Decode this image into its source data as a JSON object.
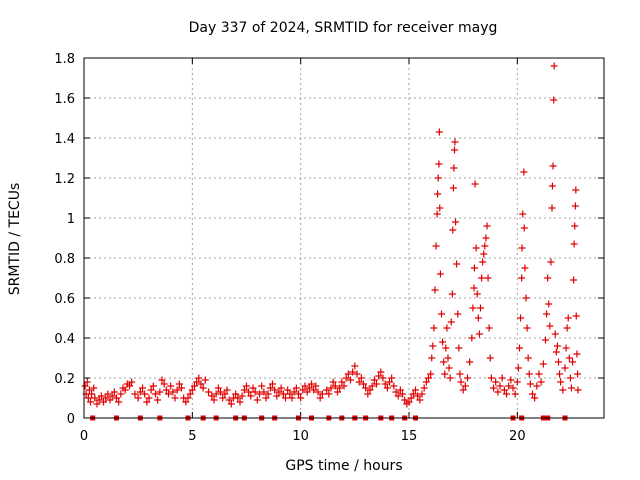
{
  "chart_data": {
    "type": "scatter",
    "title": "Day 337 of 2024, SRMTID for receiver mayg",
    "xlabel": "GPS time / hours",
    "ylabel": "SRMTID / TECUs",
    "xlim": [
      0,
      24
    ],
    "ylim": [
      0,
      1.8
    ],
    "xticks": [
      0,
      5,
      10,
      15,
      20
    ],
    "xtick_labels": [
      "0",
      "5",
      "10",
      "15",
      "20"
    ],
    "yticks": [
      0,
      0.2,
      0.4,
      0.6,
      0.8,
      1.0,
      1.2,
      1.4,
      1.6,
      1.8
    ],
    "ytick_labels": [
      "0",
      "0.2",
      "0.4",
      "0.6",
      "0.8",
      "1",
      "1.2",
      "1.4",
      "1.6",
      "1.8"
    ],
    "grid": true,
    "marker": "plus",
    "series_color": "#e00000",
    "series": [
      {
        "name": "SRMTID",
        "points": [
          [
            0.05,
            0.16
          ],
          [
            0.1,
            0.12
          ],
          [
            0.15,
            0.18
          ],
          [
            0.2,
            0.1
          ],
          [
            0.25,
            0.14
          ],
          [
            0.3,
            0.08
          ],
          [
            0.35,
            0.12
          ],
          [
            0.45,
            0.15
          ],
          [
            0.5,
            0.1
          ],
          [
            0.6,
            0.07
          ],
          [
            0.7,
            0.09
          ],
          [
            0.8,
            0.11
          ],
          [
            0.9,
            0.08
          ],
          [
            1.0,
            0.1
          ],
          [
            1.1,
            0.12
          ],
          [
            1.2,
            0.09
          ],
          [
            1.3,
            0.11
          ],
          [
            1.4,
            0.13
          ],
          [
            1.5,
            0.1
          ],
          [
            1.6,
            0.08
          ],
          [
            1.7,
            0.12
          ],
          [
            1.8,
            0.15
          ],
          [
            1.9,
            0.14
          ],
          [
            2.0,
            0.17
          ],
          [
            2.1,
            0.16
          ],
          [
            2.2,
            0.18
          ],
          [
            2.35,
            0.12
          ],
          [
            2.5,
            0.1
          ],
          [
            2.6,
            0.13
          ],
          [
            2.7,
            0.15
          ],
          [
            2.8,
            0.12
          ],
          [
            2.9,
            0.08
          ],
          [
            3.0,
            0.1
          ],
          [
            3.1,
            0.14
          ],
          [
            3.2,
            0.16
          ],
          [
            3.3,
            0.12
          ],
          [
            3.4,
            0.09
          ],
          [
            3.5,
            0.13
          ],
          [
            3.6,
            0.19
          ],
          [
            3.7,
            0.17
          ],
          [
            3.8,
            0.14
          ],
          [
            3.9,
            0.12
          ],
          [
            4.0,
            0.16
          ],
          [
            4.1,
            0.13
          ],
          [
            4.2,
            0.1
          ],
          [
            4.3,
            0.14
          ],
          [
            4.4,
            0.17
          ],
          [
            4.5,
            0.15
          ],
          [
            4.6,
            0.1
          ],
          [
            4.7,
            0.08
          ],
          [
            4.8,
            0.1
          ],
          [
            4.9,
            0.12
          ],
          [
            5.0,
            0.14
          ],
          [
            5.1,
            0.16
          ],
          [
            5.2,
            0.18
          ],
          [
            5.3,
            0.2
          ],
          [
            5.4,
            0.17
          ],
          [
            5.5,
            0.15
          ],
          [
            5.6,
            0.19
          ],
          [
            5.75,
            0.13
          ],
          [
            5.9,
            0.11
          ],
          [
            6.0,
            0.09
          ],
          [
            6.1,
            0.12
          ],
          [
            6.2,
            0.15
          ],
          [
            6.3,
            0.13
          ],
          [
            6.4,
            0.1
          ],
          [
            6.5,
            0.12
          ],
          [
            6.6,
            0.14
          ],
          [
            6.7,
            0.09
          ],
          [
            6.8,
            0.07
          ],
          [
            6.9,
            0.1
          ],
          [
            7.0,
            0.12
          ],
          [
            7.1,
            0.1
          ],
          [
            7.2,
            0.08
          ],
          [
            7.3,
            0.11
          ],
          [
            7.4,
            0.14
          ],
          [
            7.5,
            0.16
          ],
          [
            7.6,
            0.13
          ],
          [
            7.7,
            0.11
          ],
          [
            7.8,
            0.15
          ],
          [
            7.9,
            0.13
          ],
          [
            8.0,
            0.09
          ],
          [
            8.1,
            0.12
          ],
          [
            8.2,
            0.16
          ],
          [
            8.3,
            0.13
          ],
          [
            8.4,
            0.1
          ],
          [
            8.5,
            0.12
          ],
          [
            8.6,
            0.15
          ],
          [
            8.7,
            0.17
          ],
          [
            8.8,
            0.14
          ],
          [
            8.9,
            0.11
          ],
          [
            9.0,
            0.13
          ],
          [
            9.1,
            0.15
          ],
          [
            9.2,
            0.12
          ],
          [
            9.3,
            0.1
          ],
          [
            9.4,
            0.14
          ],
          [
            9.5,
            0.12
          ],
          [
            9.6,
            0.1
          ],
          [
            9.7,
            0.13
          ],
          [
            9.8,
            0.15
          ],
          [
            9.9,
            0.12
          ],
          [
            10.0,
            0.1
          ],
          [
            10.1,
            0.14
          ],
          [
            10.2,
            0.16
          ],
          [
            10.3,
            0.13
          ],
          [
            10.4,
            0.15
          ],
          [
            10.5,
            0.17
          ],
          [
            10.6,
            0.14
          ],
          [
            10.7,
            0.16
          ],
          [
            10.8,
            0.13
          ],
          [
            10.9,
            0.1
          ],
          [
            11.0,
            0.12
          ],
          [
            11.2,
            0.14
          ],
          [
            11.3,
            0.12
          ],
          [
            11.4,
            0.15
          ],
          [
            11.5,
            0.18
          ],
          [
            11.6,
            0.16
          ],
          [
            11.7,
            0.13
          ],
          [
            11.8,
            0.15
          ],
          [
            11.9,
            0.18
          ],
          [
            12.0,
            0.16
          ],
          [
            12.1,
            0.2
          ],
          [
            12.2,
            0.22
          ],
          [
            12.3,
            0.19
          ],
          [
            12.4,
            0.23
          ],
          [
            12.5,
            0.26
          ],
          [
            12.6,
            0.22
          ],
          [
            12.7,
            0.18
          ],
          [
            12.8,
            0.2
          ],
          [
            12.9,
            0.17
          ],
          [
            13.0,
            0.15
          ],
          [
            13.1,
            0.12
          ],
          [
            13.2,
            0.14
          ],
          [
            13.3,
            0.16
          ],
          [
            13.4,
            0.19
          ],
          [
            13.5,
            0.17
          ],
          [
            13.6,
            0.21
          ],
          [
            13.7,
            0.23
          ],
          [
            13.8,
            0.2
          ],
          [
            13.9,
            0.17
          ],
          [
            14.0,
            0.15
          ],
          [
            14.1,
            0.18
          ],
          [
            14.2,
            0.2
          ],
          [
            14.3,
            0.16
          ],
          [
            14.4,
            0.13
          ],
          [
            14.5,
            0.11
          ],
          [
            14.6,
            0.14
          ],
          [
            14.7,
            0.12
          ],
          [
            14.8,
            0.09
          ],
          [
            14.9,
            0.07
          ],
          [
            15.0,
            0.08
          ],
          [
            15.1,
            0.1
          ],
          [
            15.2,
            0.12
          ],
          [
            15.3,
            0.14
          ],
          [
            15.4,
            0.11
          ],
          [
            15.5,
            0.09
          ],
          [
            15.6,
            0.12
          ],
          [
            15.7,
            0.15
          ],
          [
            15.8,
            0.18
          ],
          [
            15.9,
            0.2
          ],
          [
            16.0,
            0.22
          ],
          [
            16.05,
            0.3
          ],
          [
            16.1,
            0.36
          ],
          [
            16.15,
            0.45
          ],
          [
            16.2,
            0.64
          ],
          [
            16.25,
            0.86
          ],
          [
            16.3,
            1.02
          ],
          [
            16.32,
            1.12
          ],
          [
            16.35,
            1.2
          ],
          [
            16.38,
            1.27
          ],
          [
            16.4,
            1.43
          ],
          [
            16.42,
            1.05
          ],
          [
            16.45,
            0.72
          ],
          [
            16.5,
            0.52
          ],
          [
            16.55,
            0.38
          ],
          [
            16.6,
            0.28
          ],
          [
            16.65,
            0.22
          ],
          [
            16.7,
            0.35
          ],
          [
            16.75,
            0.45
          ],
          [
            16.8,
            0.3
          ],
          [
            16.85,
            0.25
          ],
          [
            16.9,
            0.2
          ],
          [
            16.95,
            0.48
          ],
          [
            17.0,
            0.62
          ],
          [
            17.02,
            0.94
          ],
          [
            17.05,
            1.15
          ],
          [
            17.07,
            1.25
          ],
          [
            17.1,
            1.34
          ],
          [
            17.12,
            1.38
          ],
          [
            17.15,
            0.98
          ],
          [
            17.2,
            0.77
          ],
          [
            17.25,
            0.52
          ],
          [
            17.3,
            0.35
          ],
          [
            17.35,
            0.22
          ],
          [
            17.4,
            0.18
          ],
          [
            17.5,
            0.14
          ],
          [
            17.6,
            0.16
          ],
          [
            17.7,
            0.2
          ],
          [
            17.8,
            0.28
          ],
          [
            17.9,
            0.4
          ],
          [
            17.95,
            0.55
          ],
          [
            18.0,
            0.65
          ],
          [
            18.02,
            0.75
          ],
          [
            18.05,
            1.17
          ],
          [
            18.1,
            0.85
          ],
          [
            18.15,
            0.62
          ],
          [
            18.2,
            0.5
          ],
          [
            18.25,
            0.42
          ],
          [
            18.3,
            0.55
          ],
          [
            18.35,
            0.7
          ],
          [
            18.4,
            0.78
          ],
          [
            18.45,
            0.82
          ],
          [
            18.5,
            0.86
          ],
          [
            18.55,
            0.9
          ],
          [
            18.6,
            0.96
          ],
          [
            18.65,
            0.7
          ],
          [
            18.7,
            0.45
          ],
          [
            18.75,
            0.3
          ],
          [
            18.8,
            0.2
          ],
          [
            18.9,
            0.15
          ],
          [
            19.0,
            0.18
          ],
          [
            19.1,
            0.13
          ],
          [
            19.2,
            0.16
          ],
          [
            19.3,
            0.2
          ],
          [
            19.4,
            0.14
          ],
          [
            19.5,
            0.12
          ],
          [
            19.6,
            0.16
          ],
          [
            19.7,
            0.19
          ],
          [
            19.8,
            0.15
          ],
          [
            19.9,
            0.12
          ],
          [
            20.0,
            0.18
          ],
          [
            20.05,
            0.25
          ],
          [
            20.1,
            0.35
          ],
          [
            20.15,
            0.5
          ],
          [
            20.2,
            0.7
          ],
          [
            20.22,
            0.85
          ],
          [
            20.25,
            1.02
          ],
          [
            20.3,
            1.23
          ],
          [
            20.32,
            0.95
          ],
          [
            20.35,
            0.75
          ],
          [
            20.4,
            0.6
          ],
          [
            20.45,
            0.45
          ],
          [
            20.5,
            0.3
          ],
          [
            20.55,
            0.22
          ],
          [
            20.6,
            0.17
          ],
          [
            20.7,
            0.12
          ],
          [
            20.8,
            0.1
          ],
          [
            20.9,
            0.16
          ],
          [
            21.0,
            0.22
          ],
          [
            21.1,
            0.18
          ],
          [
            21.2,
            0.27
          ],
          [
            21.3,
            0.39
          ],
          [
            21.35,
            0.52
          ],
          [
            21.4,
            0.7
          ],
          [
            21.45,
            0.57
          ],
          [
            21.5,
            0.46
          ],
          [
            21.55,
            0.78
          ],
          [
            21.6,
            1.05
          ],
          [
            21.62,
            1.16
          ],
          [
            21.65,
            1.26
          ],
          [
            21.68,
            1.59
          ],
          [
            21.7,
            1.76
          ],
          [
            21.75,
            0.42
          ],
          [
            21.8,
            0.33
          ],
          [
            21.85,
            0.36
          ],
          [
            21.9,
            0.28
          ],
          [
            21.95,
            0.22
          ],
          [
            22.0,
            0.18
          ],
          [
            22.1,
            0.14
          ],
          [
            22.2,
            0.25
          ],
          [
            22.25,
            0.35
          ],
          [
            22.3,
            0.45
          ],
          [
            22.35,
            0.5
          ],
          [
            22.4,
            0.3
          ],
          [
            22.45,
            0.2
          ],
          [
            22.5,
            0.15
          ],
          [
            22.55,
            0.28
          ],
          [
            22.6,
            0.69
          ],
          [
            22.62,
            0.87
          ],
          [
            22.65,
            0.96
          ],
          [
            22.68,
            1.06
          ],
          [
            22.7,
            1.14
          ],
          [
            22.72,
            0.51
          ],
          [
            22.75,
            0.32
          ],
          [
            22.78,
            0.22
          ],
          [
            22.8,
            0.14
          ]
        ]
      },
      {
        "name": "SRMTID zero-level markers",
        "marker": "square",
        "points": [
          [
            0.4,
            0
          ],
          [
            1.5,
            0
          ],
          [
            2.6,
            0
          ],
          [
            3.5,
            0
          ],
          [
            4.8,
            0
          ],
          [
            5.5,
            0
          ],
          [
            6.1,
            0
          ],
          [
            7.0,
            0
          ],
          [
            7.4,
            0
          ],
          [
            8.2,
            0
          ],
          [
            8.8,
            0
          ],
          [
            9.9,
            0
          ],
          [
            10.5,
            0
          ],
          [
            11.3,
            0
          ],
          [
            11.9,
            0
          ],
          [
            12.5,
            0
          ],
          [
            13.0,
            0
          ],
          [
            13.7,
            0
          ],
          [
            14.2,
            0
          ],
          [
            14.8,
            0
          ],
          [
            15.3,
            0
          ],
          [
            19.8,
            0
          ],
          [
            20.2,
            0
          ],
          [
            21.2,
            0
          ],
          [
            21.4,
            0
          ],
          [
            22.2,
            0
          ]
        ]
      }
    ]
  }
}
